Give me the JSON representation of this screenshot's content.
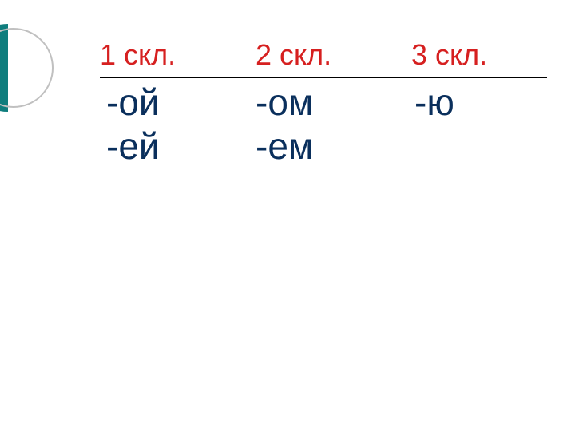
{
  "decoration": {
    "semi_color": "#0f7d7d",
    "outline_color": "#c0c0c0"
  },
  "table": {
    "header_color": "#d62020",
    "header_fontsize": 36,
    "cell_color": "#0a2f5c",
    "cell_fontsize": 46,
    "border_color": "#000000",
    "headers": {
      "col1": "1 скл.",
      "col2": "2 скл.",
      "col3": "3 скл."
    },
    "rows": [
      {
        "col1": "-ой",
        "col2": "-ом",
        "col3": "-ю"
      },
      {
        "col1": "-ей",
        "col2": "-ем",
        "col3": ""
      }
    ]
  }
}
